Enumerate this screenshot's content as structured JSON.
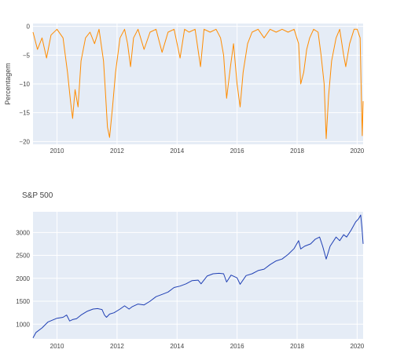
{
  "chart_data": [
    {
      "type": "line",
      "title": "",
      "xlabel": "",
      "ylabel": "Percentagem",
      "xlim": [
        2009.2,
        2020.2
      ],
      "ylim": [
        -20.5,
        0.5
      ],
      "x_ticks": [
        2010,
        2012,
        2014,
        2016,
        2018,
        2020
      ],
      "y_ticks": [
        0,
        -5,
        -10,
        -15,
        -20
      ],
      "grid": true,
      "plot_bg": "#e5ecf6",
      "line_color": "#ff8c00",
      "series": [
        {
          "x": [
            2009.2,
            2009.35,
            2009.5,
            2009.65,
            2009.8,
            2010.0,
            2010.2,
            2010.35,
            2010.45,
            2010.52,
            2010.6,
            2010.7,
            2010.8,
            2010.95,
            2011.1,
            2011.25,
            2011.4,
            2011.55,
            2011.62,
            2011.68,
            2011.75,
            2011.85,
            2011.95,
            2012.1,
            2012.25,
            2012.35,
            2012.45,
            2012.55,
            2012.7,
            2012.9,
            2013.1,
            2013.3,
            2013.5,
            2013.7,
            2013.9,
            2014.1,
            2014.25,
            2014.4,
            2014.6,
            2014.78,
            2014.9,
            2015.1,
            2015.3,
            2015.45,
            2015.55,
            2015.65,
            2015.78,
            2015.88,
            2016.0,
            2016.1,
            2016.2,
            2016.35,
            2016.5,
            2016.7,
            2016.9,
            2017.1,
            2017.3,
            2017.5,
            2017.7,
            2017.9,
            2018.05,
            2018.12,
            2018.22,
            2018.32,
            2018.42,
            2018.55,
            2018.7,
            2018.8,
            2018.9,
            2018.97,
            2019.05,
            2019.15,
            2019.3,
            2019.42,
            2019.55,
            2019.62,
            2019.75,
            2019.9,
            2020.0,
            2020.1,
            2020.14,
            2020.17,
            2020.2
          ],
          "y": [
            -1.0,
            -4.0,
            -2.0,
            -5.5,
            -1.5,
            -0.5,
            -2.0,
            -8.0,
            -13.0,
            -16.0,
            -11.0,
            -14.0,
            -6.0,
            -2.0,
            -1.0,
            -3.0,
            -0.5,
            -6.0,
            -12.0,
            -17.5,
            -19.3,
            -14.0,
            -8.0,
            -2.0,
            -0.5,
            -3.0,
            -7.0,
            -2.0,
            -0.5,
            -4.0,
            -1.0,
            -0.5,
            -4.5,
            -1.0,
            -0.5,
            -5.5,
            -0.5,
            -1.0,
            -0.5,
            -7.0,
            -0.5,
            -1.0,
            -0.5,
            -2.0,
            -5.0,
            -12.5,
            -7.0,
            -3.0,
            -10.0,
            -14.0,
            -8.0,
            -3.0,
            -1.0,
            -0.5,
            -2.0,
            -0.5,
            -1.0,
            -0.5,
            -1.0,
            -0.5,
            -3.0,
            -10.0,
            -8.0,
            -4.0,
            -2.0,
            -0.5,
            -1.0,
            -5.0,
            -10.0,
            -19.5,
            -12.0,
            -6.0,
            -2.0,
            -0.5,
            -5.0,
            -7.0,
            -3.0,
            -0.5,
            -0.5,
            -2.0,
            -12.0,
            -19.0,
            -13.0
          ]
        }
      ]
    },
    {
      "type": "line",
      "title": "S&P 500",
      "xlabel": "",
      "ylabel": "",
      "xlim": [
        2009.2,
        2020.2
      ],
      "ylim": [
        680,
        3450
      ],
      "x_ticks": [
        2010,
        2012,
        2014,
        2016,
        2018,
        2020
      ],
      "y_ticks": [
        1000,
        1500,
        2000,
        2500,
        3000,
        3500
      ],
      "grid": true,
      "plot_bg": "#e5ecf6",
      "line_color": "#1f3fb4",
      "series": [
        {
          "x": [
            2009.2,
            2009.3,
            2009.5,
            2009.7,
            2010.0,
            2010.2,
            2010.32,
            2010.42,
            2010.52,
            2010.65,
            2010.8,
            2011.0,
            2011.2,
            2011.35,
            2011.5,
            2011.58,
            2011.65,
            2011.75,
            2011.9,
            2012.1,
            2012.25,
            2012.4,
            2012.5,
            2012.7,
            2012.9,
            2013.1,
            2013.3,
            2013.5,
            2013.7,
            2013.9,
            2014.1,
            2014.3,
            2014.5,
            2014.7,
            2014.8,
            2015.0,
            2015.2,
            2015.4,
            2015.55,
            2015.65,
            2015.8,
            2016.0,
            2016.1,
            2016.3,
            2016.5,
            2016.7,
            2016.9,
            2017.1,
            2017.3,
            2017.5,
            2017.7,
            2017.9,
            2018.05,
            2018.12,
            2018.25,
            2018.45,
            2018.6,
            2018.75,
            2018.85,
            2018.97,
            2019.1,
            2019.3,
            2019.42,
            2019.55,
            2019.65,
            2019.8,
            2019.95,
            2020.05,
            2020.12,
            2020.16,
            2020.2
          ],
          "y": [
            700,
            820,
            920,
            1050,
            1130,
            1150,
            1200,
            1070,
            1100,
            1120,
            1200,
            1280,
            1330,
            1340,
            1320,
            1200,
            1150,
            1220,
            1250,
            1330,
            1400,
            1330,
            1380,
            1440,
            1420,
            1500,
            1600,
            1650,
            1700,
            1800,
            1830,
            1880,
            1950,
            1960,
            1880,
            2050,
            2100,
            2110,
            2100,
            1920,
            2070,
            2010,
            1870,
            2060,
            2100,
            2170,
            2200,
            2300,
            2380,
            2420,
            2520,
            2650,
            2820,
            2640,
            2700,
            2750,
            2850,
            2900,
            2700,
            2420,
            2700,
            2900,
            2820,
            2950,
            2900,
            3050,
            3230,
            3300,
            3380,
            3100,
            2750
          ]
        }
      ]
    }
  ]
}
